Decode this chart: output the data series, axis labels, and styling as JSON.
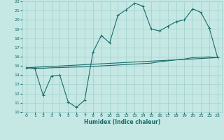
{
  "title": "",
  "xlabel": "Humidex (Indice chaleur)",
  "xlim": [
    -0.5,
    23.5
  ],
  "ylim": [
    10,
    22
  ],
  "xticks": [
    0,
    1,
    2,
    3,
    4,
    5,
    6,
    7,
    8,
    9,
    10,
    11,
    12,
    13,
    14,
    15,
    16,
    17,
    18,
    19,
    20,
    21,
    22,
    23
  ],
  "yticks": [
    10,
    11,
    12,
    13,
    14,
    15,
    16,
    17,
    18,
    19,
    20,
    21,
    22
  ],
  "background_color": "#c5e8e4",
  "grid_color": "#9fcfca",
  "line_color": "#1a6b6b",
  "line1_x": [
    0,
    1,
    2,
    3,
    4,
    5,
    6,
    7,
    8,
    9,
    10,
    11,
    12,
    13,
    14,
    15,
    16,
    17,
    18,
    19,
    20,
    21,
    22,
    23
  ],
  "line1_y": [
    14.8,
    14.7,
    11.8,
    13.9,
    14.0,
    11.1,
    10.5,
    11.3,
    16.5,
    18.3,
    17.5,
    20.5,
    21.1,
    21.8,
    21.5,
    19.0,
    18.8,
    19.3,
    19.8,
    20.0,
    21.2,
    20.8,
    19.1,
    15.9
  ],
  "line2_x": [
    0,
    23
  ],
  "line2_y": [
    14.8,
    15.9
  ],
  "line3_x": [
    0,
    1,
    2,
    3,
    4,
    5,
    6,
    7,
    8,
    9,
    10,
    11,
    12,
    13,
    14,
    15,
    16,
    17,
    18,
    19,
    20,
    21,
    22,
    23
  ],
  "line3_y": [
    14.8,
    14.75,
    14.75,
    14.8,
    14.82,
    14.85,
    14.88,
    14.9,
    14.95,
    15.0,
    15.05,
    15.1,
    15.15,
    15.2,
    15.25,
    15.3,
    15.45,
    15.55,
    15.65,
    15.75,
    15.9,
    15.95,
    15.98,
    15.9
  ]
}
